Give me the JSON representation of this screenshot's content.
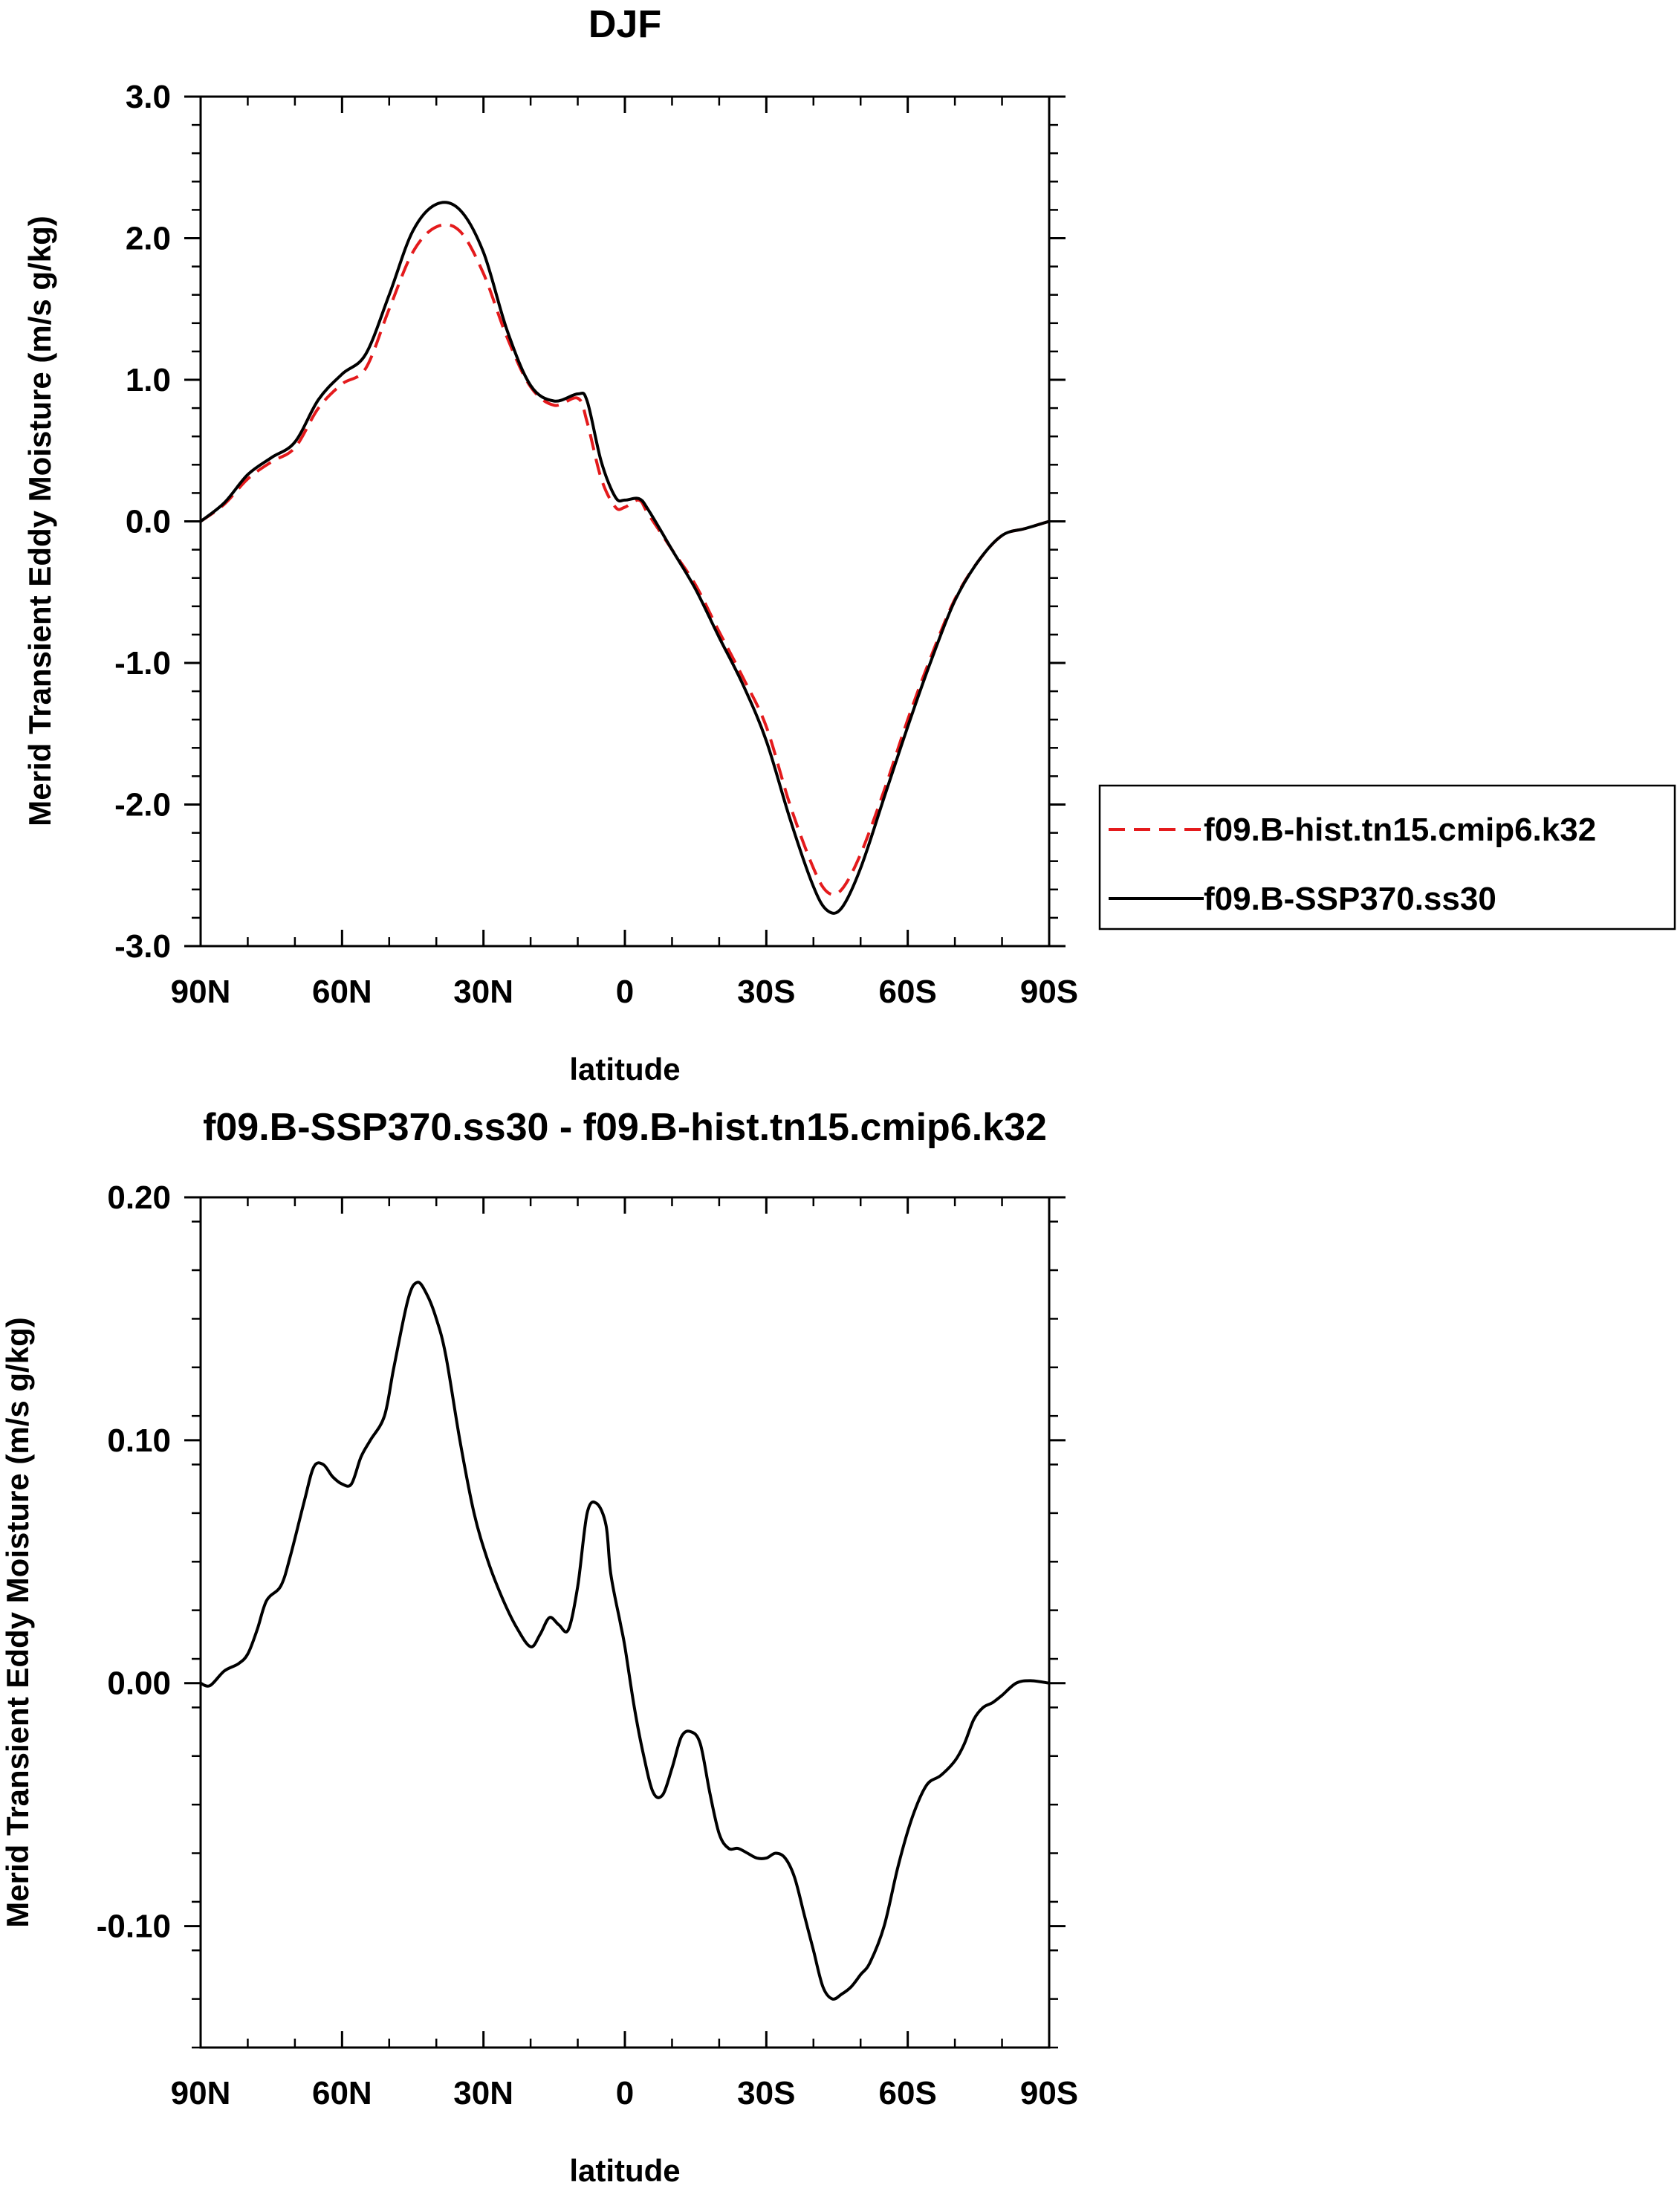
{
  "chart_data": [
    {
      "type": "line",
      "title": "DJF",
      "xlabel": "latitude",
      "ylabel": "Merid Transient Eddy Moisture (m/s g/kg)",
      "xlim": [
        90,
        -90
      ],
      "ylim": [
        -3.0,
        3.0
      ],
      "x_ticks": [
        90,
        60,
        30,
        0,
        -30,
        -60,
        -90
      ],
      "x_tick_labels": [
        "90N",
        "60N",
        "30N",
        "0",
        "30S",
        "60S",
        "90S"
      ],
      "y_ticks": [
        3.0,
        2.0,
        1.0,
        0.0,
        -1.0,
        -2.0,
        -3.0
      ],
      "y_tick_labels": [
        "3.0",
        "2.0",
        "1.0",
        "0.0",
        "-1.0",
        "-2.0",
        "-3.0"
      ],
      "legend_position": "right",
      "series": [
        {
          "name": "f09.B-hist.tn15.cmip6.k32",
          "color": "#e41a1c",
          "dash": "dashed",
          "x": [
            90,
            85,
            80,
            75,
            70,
            65,
            60,
            55,
            50,
            45,
            40,
            35,
            30,
            25,
            20,
            15,
            10,
            8,
            5,
            2,
            0,
            -3,
            -5,
            -10,
            -15,
            -20,
            -25,
            -30,
            -35,
            -40,
            -43,
            -46,
            -50,
            -55,
            -60,
            -65,
            -70,
            -75,
            -80,
            -85,
            -90
          ],
          "y": [
            0.0,
            0.12,
            0.3,
            0.42,
            0.52,
            0.8,
            0.97,
            1.08,
            1.5,
            1.9,
            2.08,
            2.05,
            1.75,
            1.3,
            0.95,
            0.82,
            0.87,
            0.7,
            0.3,
            0.1,
            0.1,
            0.15,
            0.05,
            -0.2,
            -0.45,
            -0.78,
            -1.1,
            -1.45,
            -2.0,
            -2.45,
            -2.62,
            -2.6,
            -2.35,
            -1.9,
            -1.4,
            -0.95,
            -0.55,
            -0.28,
            -0.1,
            -0.05,
            0.0
          ]
        },
        {
          "name": "f09.B-SSP370.ss30",
          "color": "#000000",
          "dash": "solid",
          "x": [
            90,
            85,
            80,
            75,
            70,
            65,
            60,
            55,
            50,
            45,
            40,
            35,
            30,
            25,
            20,
            15,
            10,
            8,
            5,
            2,
            0,
            -3,
            -5,
            -10,
            -15,
            -20,
            -25,
            -30,
            -35,
            -40,
            -43,
            -46,
            -50,
            -55,
            -60,
            -65,
            -70,
            -75,
            -80,
            -85,
            -90
          ],
          "y": [
            0.0,
            0.13,
            0.33,
            0.45,
            0.56,
            0.86,
            1.04,
            1.18,
            1.6,
            2.05,
            2.24,
            2.2,
            1.9,
            1.35,
            0.96,
            0.85,
            0.9,
            0.85,
            0.42,
            0.17,
            0.15,
            0.16,
            0.08,
            -0.2,
            -0.48,
            -0.82,
            -1.15,
            -1.55,
            -2.1,
            -2.58,
            -2.75,
            -2.73,
            -2.45,
            -1.95,
            -1.45,
            -0.98,
            -0.56,
            -0.28,
            -0.1,
            -0.05,
            0.0
          ]
        }
      ]
    },
    {
      "type": "line",
      "title": "f09.B-SSP370.ss30 - f09.B-hist.tn15.cmip6.k32",
      "xlabel": "latitude",
      "ylabel": "Merid Transient Eddy Moisture (m/s g/kg)",
      "xlim": [
        90,
        -90
      ],
      "ylim": [
        -0.15,
        0.2
      ],
      "x_ticks": [
        90,
        60,
        30,
        0,
        -30,
        -60,
        -90
      ],
      "x_tick_labels": [
        "90N",
        "60N",
        "30N",
        "0",
        "30S",
        "60S",
        "90S"
      ],
      "y_ticks": [
        0.2,
        0.1,
        0.0,
        -0.1
      ],
      "y_tick_labels": [
        "0.20",
        "0.10",
        "0.00",
        "-0.10"
      ],
      "series": [
        {
          "name": "difference",
          "color": "#000000",
          "dash": "solid",
          "x": [
            90,
            88,
            85,
            82,
            80,
            78,
            76,
            73,
            71,
            68,
            66,
            64,
            62,
            60,
            58,
            56,
            54,
            51,
            49,
            46,
            44,
            42,
            40,
            38,
            35,
            32,
            29,
            26,
            23,
            20,
            18,
            16,
            14,
            12,
            10,
            8,
            6,
            4,
            3,
            1,
            0,
            -2,
            -4,
            -6,
            -8,
            -10,
            -12,
            -14,
            -16,
            -18,
            -20,
            -22,
            -24,
            -26,
            -28,
            -30,
            -32,
            -34,
            -36,
            -38,
            -40,
            -42,
            -44,
            -46,
            -48,
            -50,
            -52,
            -55,
            -58,
            -61,
            -64,
            -67,
            -70,
            -72,
            -74,
            -76,
            -78,
            -80,
            -83,
            -86,
            -90
          ],
          "y": [
            0.0,
            -0.001,
            0.005,
            0.008,
            0.012,
            0.022,
            0.034,
            0.04,
            0.052,
            0.075,
            0.089,
            0.09,
            0.085,
            0.082,
            0.082,
            0.093,
            0.1,
            0.11,
            0.13,
            0.158,
            0.165,
            0.16,
            0.15,
            0.135,
            0.1,
            0.07,
            0.05,
            0.035,
            0.023,
            0.015,
            0.02,
            0.027,
            0.024,
            0.022,
            0.04,
            0.07,
            0.074,
            0.065,
            0.045,
            0.025,
            0.015,
            -0.01,
            -0.03,
            -0.045,
            -0.046,
            -0.035,
            -0.022,
            -0.02,
            -0.025,
            -0.045,
            -0.062,
            -0.068,
            -0.068,
            -0.07,
            -0.072,
            -0.072,
            -0.07,
            -0.072,
            -0.08,
            -0.095,
            -0.11,
            -0.125,
            -0.13,
            -0.128,
            -0.125,
            -0.12,
            -0.115,
            -0.1,
            -0.075,
            -0.055,
            -0.042,
            -0.038,
            -0.032,
            -0.025,
            -0.015,
            -0.01,
            -0.008,
            -0.005,
            0.0,
            0.001,
            0.0
          ]
        }
      ]
    }
  ]
}
